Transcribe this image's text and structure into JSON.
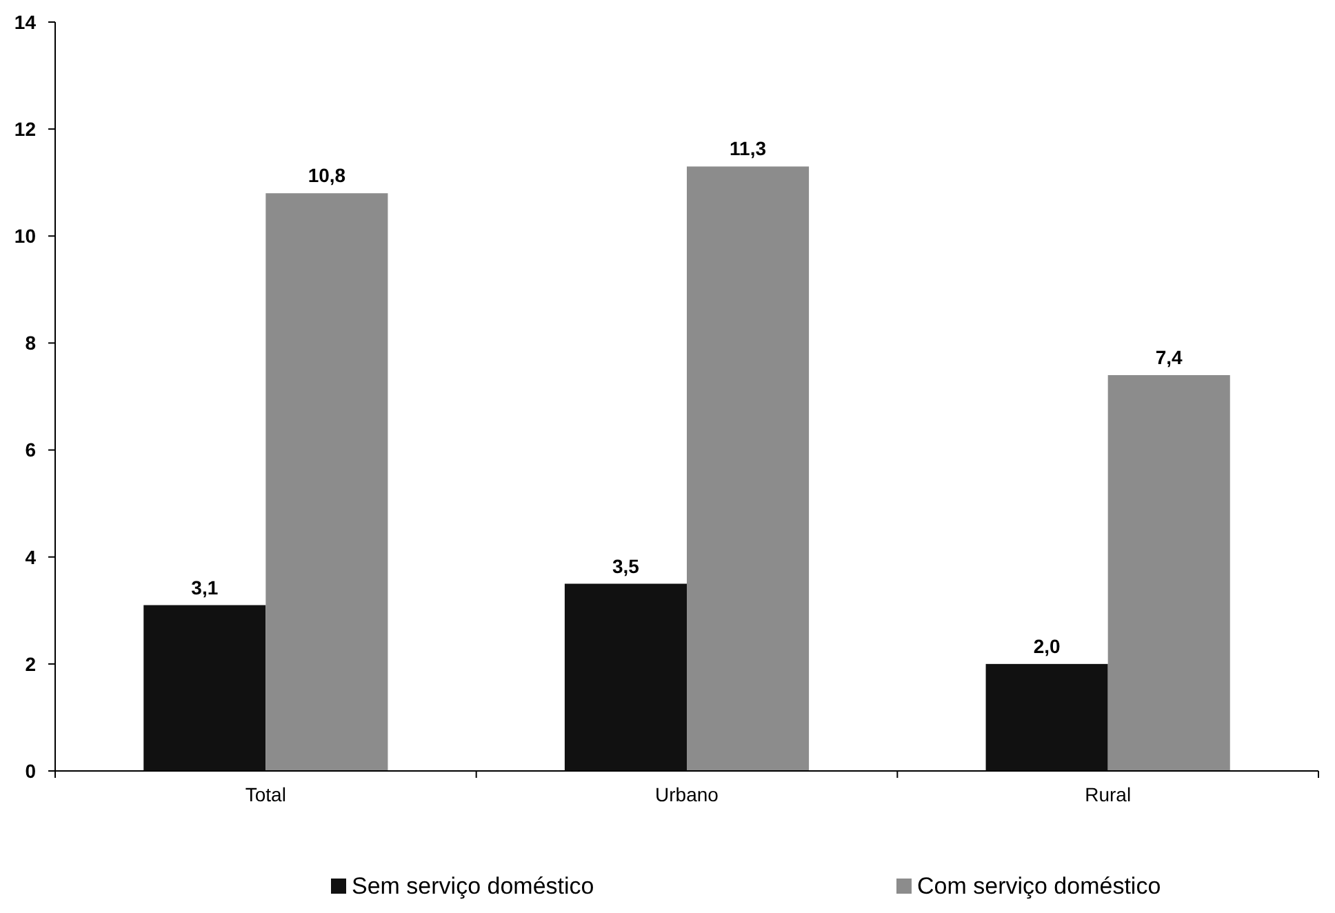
{
  "chart_data": {
    "type": "bar",
    "categories": [
      "Total",
      "Urbano",
      "Rural"
    ],
    "series": [
      {
        "name": "Sem serviço doméstico",
        "color": "#111111",
        "values": [
          3.1,
          3.5,
          2.0
        ],
        "value_labels": [
          "3,1",
          "3,5",
          "2,0"
        ]
      },
      {
        "name": "Com serviço doméstico",
        "color": "#8c8c8c",
        "values": [
          10.8,
          11.3,
          7.4
        ],
        "value_labels": [
          "10,8",
          "11,3",
          "7,4"
        ]
      }
    ],
    "ylim": [
      0,
      14
    ],
    "yticks": [
      0,
      2,
      4,
      6,
      8,
      10,
      12,
      14
    ],
    "grid": false,
    "legend": "bottom"
  }
}
